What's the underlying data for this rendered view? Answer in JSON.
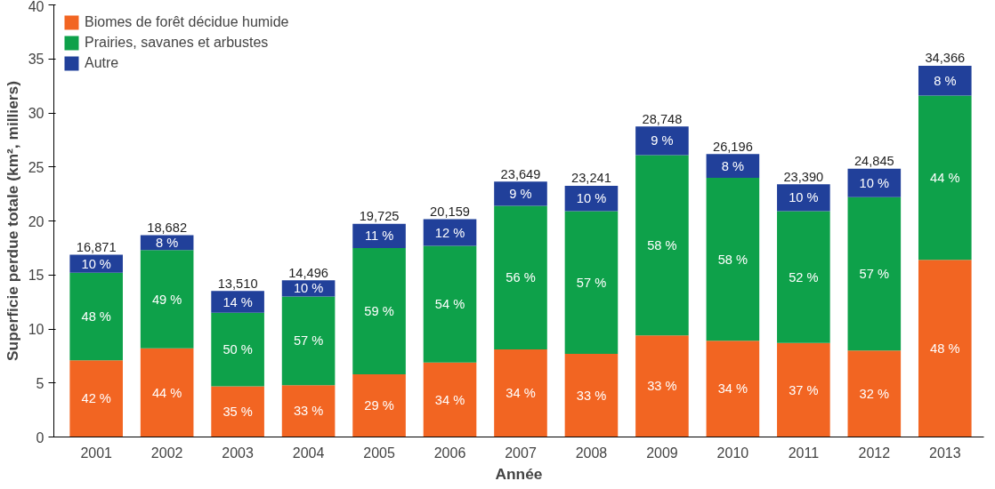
{
  "chart_data": {
    "type": "bar",
    "stacked": true,
    "xlabel": "Année",
    "ylabel": "Superficie perdue totale (km², milliers)",
    "categories": [
      "2001",
      "2002",
      "2003",
      "2004",
      "2005",
      "2006",
      "2007",
      "2008",
      "2009",
      "2010",
      "2011",
      "2012",
      "2013"
    ],
    "series": [
      {
        "name": "Biomes de forêt décidue humide",
        "color": "#f26522",
        "values": [
          7.1,
          8.2,
          4.7,
          4.8,
          5.8,
          6.9,
          8.1,
          7.7,
          9.4,
          8.9,
          8.7,
          8.0,
          16.4
        ]
      },
      {
        "name": "Prairies, savanes et arbustes",
        "color": "#0ea14a",
        "values": [
          8.1,
          9.1,
          6.8,
          8.2,
          11.7,
          10.8,
          13.3,
          13.2,
          16.7,
          15.1,
          12.2,
          14.2,
          15.2
        ]
      },
      {
        "name": "Autre",
        "color": "#21409a",
        "values": [
          1.671,
          1.382,
          2.01,
          1.496,
          2.225,
          2.459,
          2.249,
          2.341,
          2.648,
          2.196,
          2.49,
          2.645,
          2.766
        ]
      }
    ],
    "annotations": [
      "42 %",
      "48 %",
      "10 %",
      "44 %",
      "49 %",
      "8 %",
      "35 %",
      "50 %",
      "14 %",
      "33 %",
      "57 %",
      "10 %",
      "29 %",
      "59 %",
      "11 %",
      "34 %",
      "54 %",
      "12 %",
      "34 %",
      "56 %",
      "9 %",
      "33 %",
      "57 %",
      "10 %",
      "33 %",
      "58 %",
      "9 %",
      "34 %",
      "58 %",
      "8 %",
      "37 %",
      "52 %",
      "10 %",
      "32 %",
      "57 %",
      "10 %",
      "48 %",
      "44 %",
      "8 %"
    ],
    "totals": [
      "16,871",
      "18,682",
      "13,510",
      "14,496",
      "19,725",
      "20,159",
      "23,649",
      "23,241",
      "28,748",
      "26,196",
      "23,390",
      "24,845",
      "34,366"
    ],
    "ylim": [
      0,
      40
    ],
    "yticks": [
      0,
      5,
      10,
      15,
      20,
      25,
      30,
      35,
      40
    ],
    "grid": false,
    "legend": "top left"
  }
}
